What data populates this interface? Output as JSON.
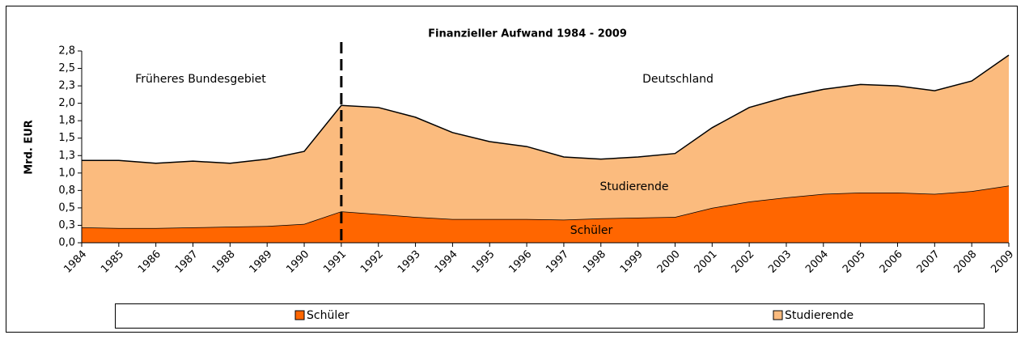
{
  "chart_data": {
    "type": "area",
    "stacked": true,
    "title": "Finanzieller Aufwand 1984 - 2009",
    "y_label": "Mrd. EUR",
    "annotations": [
      "Früheres Bundesgebiet",
      "Deutschland",
      "Studierende",
      "Schüler"
    ],
    "divider_category": "1991",
    "categories": [
      "1984",
      "1985",
      "1986",
      "1987",
      "1988",
      "1989",
      "1990",
      "1991",
      "1992",
      "1993",
      "1994",
      "1995",
      "1996",
      "1997",
      "1998",
      "1999",
      "2000",
      "2001",
      "2002",
      "2003",
      "2004",
      "2005",
      "2006",
      "2007",
      "2008",
      "2009"
    ],
    "series": [
      {
        "name": "Schüler",
        "color": "#ff6600",
        "values": [
          0.22,
          0.21,
          0.21,
          0.22,
          0.23,
          0.24,
          0.27,
          0.45,
          0.41,
          0.37,
          0.34,
          0.34,
          0.34,
          0.33,
          0.35,
          0.36,
          0.37,
          0.5,
          0.59,
          0.65,
          0.7,
          0.72,
          0.72,
          0.7,
          0.74,
          0.82
        ]
      },
      {
        "name": "Studierende",
        "color": "#fbbb7e",
        "values": [
          0.96,
          0.97,
          0.93,
          0.95,
          0.91,
          0.96,
          1.04,
          1.52,
          1.53,
          1.43,
          1.24,
          1.11,
          1.04,
          0.9,
          0.85,
          0.87,
          0.91,
          1.15,
          1.35,
          1.44,
          1.5,
          1.55,
          1.53,
          1.48,
          1.58,
          1.87
        ]
      }
    ],
    "ylim": [
      0,
      2.75
    ],
    "yticks": [
      {
        "value": 0,
        "label": "0,0"
      },
      {
        "value": 0.25,
        "label": "0,3"
      },
      {
        "value": 0.5,
        "label": "0,5"
      },
      {
        "value": 0.75,
        "label": "0,8"
      },
      {
        "value": 1,
        "label": "1,0"
      },
      {
        "value": 1.25,
        "label": "1,3"
      },
      {
        "value": 1.5,
        "label": "1,5"
      },
      {
        "value": 1.75,
        "label": "1,8"
      },
      {
        "value": 2,
        "label": "2,0"
      },
      {
        "value": 2.25,
        "label": "2,3"
      },
      {
        "value": 2.5,
        "label": "2,5"
      },
      {
        "value": 2.75,
        "label": "2,8"
      }
    ],
    "legend": "bottom"
  }
}
